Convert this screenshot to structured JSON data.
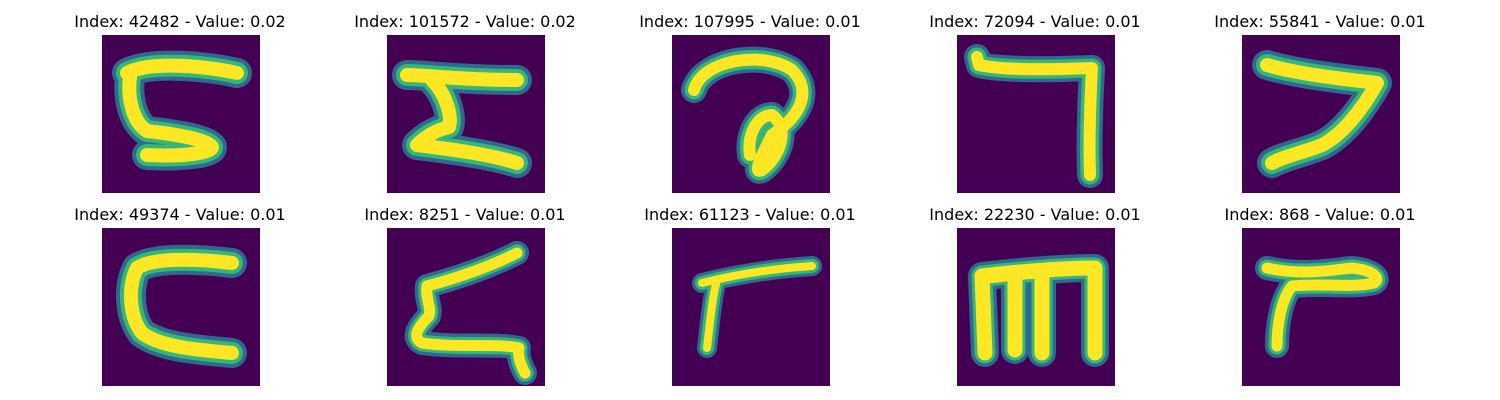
{
  "colors": {
    "background": "#440154",
    "stroke_outer": "#31688e",
    "stroke_mid": "#35b779",
    "stroke_core": "#fde725"
  },
  "panels": [
    {
      "title": "Index: 42482 - Value: 0.02",
      "glyph": "backward-s"
    },
    {
      "title": "Index: 101572 - Value: 0.02",
      "glyph": "z-shape"
    },
    {
      "title": "Index: 107995 - Value: 0.01",
      "glyph": "loop-a"
    },
    {
      "title": "Index: 72094 - Value: 0.01",
      "glyph": "hook-7"
    },
    {
      "title": "Index: 55841 - Value: 0.01",
      "glyph": "angle-7"
    },
    {
      "title": "Index: 49374 - Value: 0.01",
      "glyph": "c-shape"
    },
    {
      "title": "Index: 8251 - Value: 0.01",
      "glyph": "z-curved"
    },
    {
      "title": "Index: 61123 - Value: 0.01",
      "glyph": "r-shape"
    },
    {
      "title": "Index: 22230 - Value: 0.01",
      "glyph": "m-shape"
    },
    {
      "title": "Index: 868 - Value: 0.01",
      "glyph": "r-hook"
    }
  ]
}
